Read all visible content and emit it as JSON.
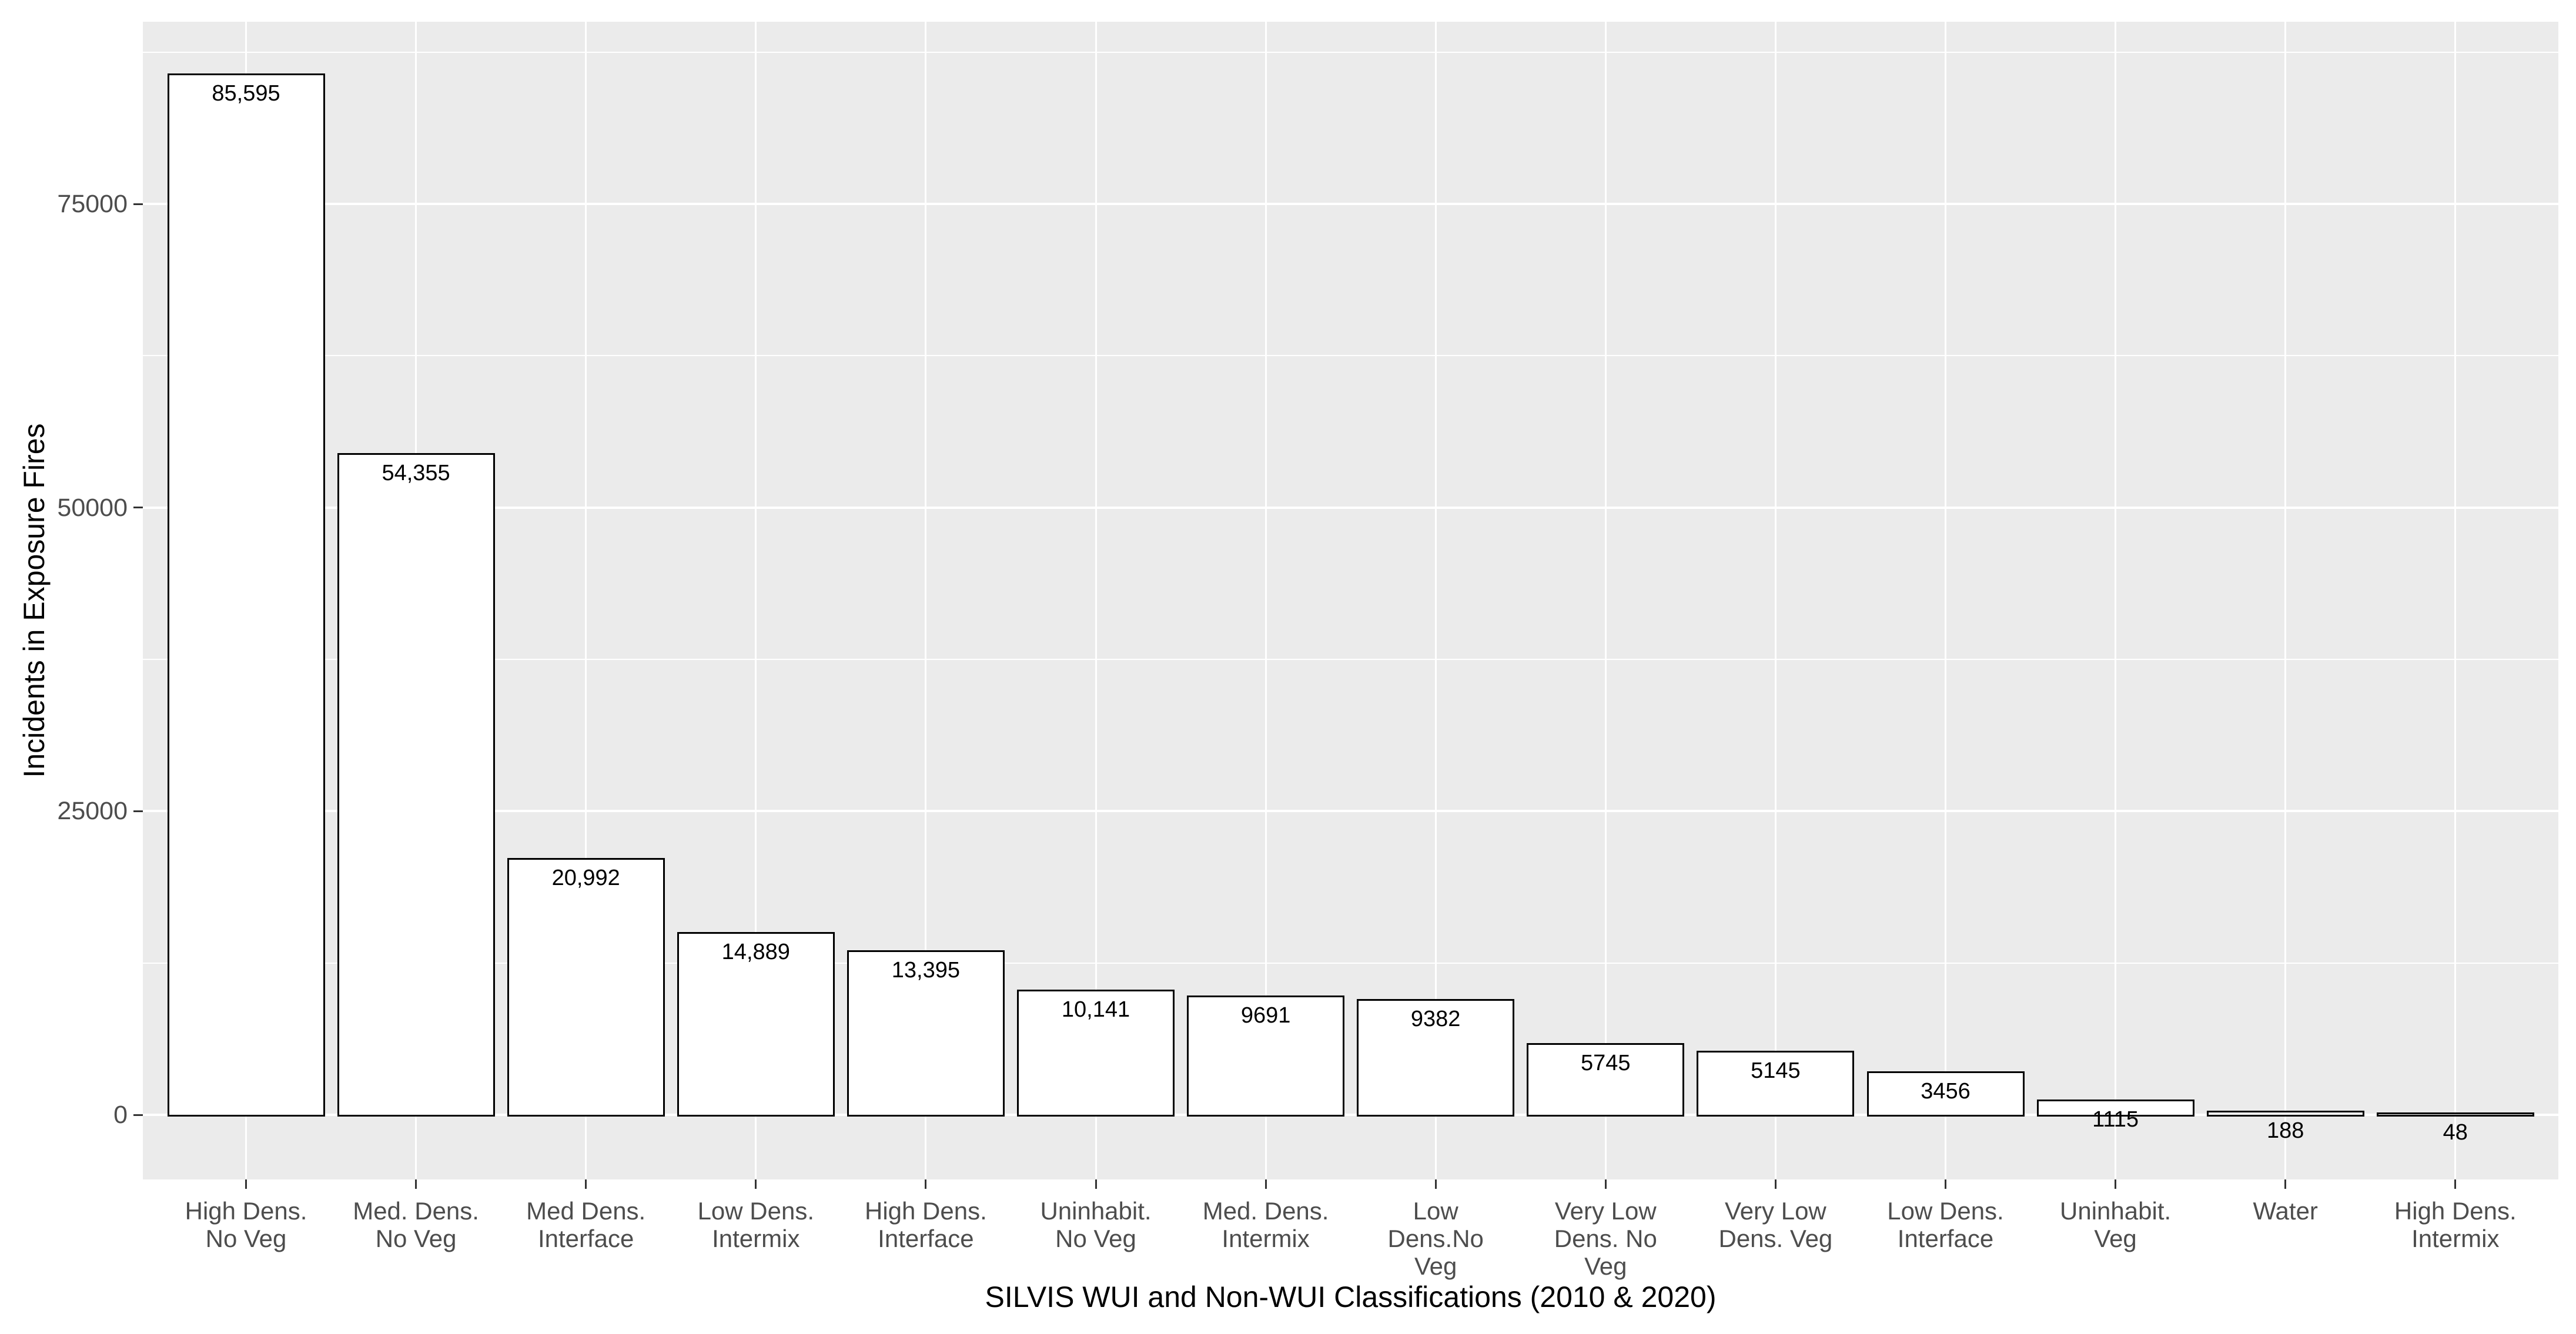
{
  "chart_data": {
    "type": "bar",
    "title": "",
    "xlabel": "SILVIS WUI and Non-WUI Classifications (2010 & 2020)",
    "ylabel": "Incidents in Exposure Fires",
    "categories": [
      "High Dens. No Veg",
      "Med. Dens. No Veg",
      "Med Dens. Interface",
      "Low Dens. Intermix",
      "High Dens. Interface",
      "Uninhabit. No Veg",
      "Med. Dens. Intermix",
      "Low Dens.No Veg",
      "Very Low Dens. No Veg",
      "Very Low Dens. Veg",
      "Low Dens. Interface",
      "Uninhabit. Veg",
      "Water",
      "High Dens. Intermix"
    ],
    "category_label_lines": [
      [
        "High Dens.",
        "No Veg"
      ],
      [
        "Med. Dens.",
        "No Veg"
      ],
      [
        "Med Dens.",
        "Interface"
      ],
      [
        "Low Dens.",
        "Intermix"
      ],
      [
        "High Dens.",
        "Interface"
      ],
      [
        "Uninhabit.",
        "No Veg"
      ],
      [
        "Med. Dens.",
        "Intermix"
      ],
      [
        "Low",
        "Dens.No",
        "Veg"
      ],
      [
        "Very Low",
        "Dens. No",
        "Veg"
      ],
      [
        "Very Low",
        "Dens. Veg"
      ],
      [
        "Low Dens.",
        "Interface"
      ],
      [
        "Uninhabit.",
        "Veg"
      ],
      [
        "Water"
      ],
      [
        "High Dens.",
        "Intermix"
      ]
    ],
    "values": [
      85595,
      54355,
      20992,
      14889,
      13395,
      10141,
      9691,
      9382,
      5745,
      5145,
      3456,
      1115,
      188,
      48
    ],
    "value_labels": [
      "85,595",
      "54,355",
      "20,992",
      "14,889",
      "13,395",
      "10,141",
      "9691",
      "9382",
      "5745",
      "5145",
      "3456",
      "1115",
      "188",
      "48"
    ],
    "ylim": [
      0,
      90000
    ],
    "y_major_ticks": [
      0,
      25000,
      50000,
      75000
    ],
    "y_major_tick_labels": [
      "0",
      "25000",
      "50000",
      "75000"
    ],
    "y_minor_gridlines": [
      12500,
      37500,
      62500,
      87500
    ],
    "grid": "on",
    "legend": "none",
    "colors": {
      "bar_fill": "#FFFFFF",
      "bar_outline": "#000000",
      "panel_background": "#EBEBEB",
      "gridline": "#FFFFFF",
      "tick_label": "#4D4D4D",
      "tick_mark": "#333333",
      "axis_title": "#000000",
      "value_label": "#000000",
      "page_background": "#FFFFFF"
    }
  }
}
